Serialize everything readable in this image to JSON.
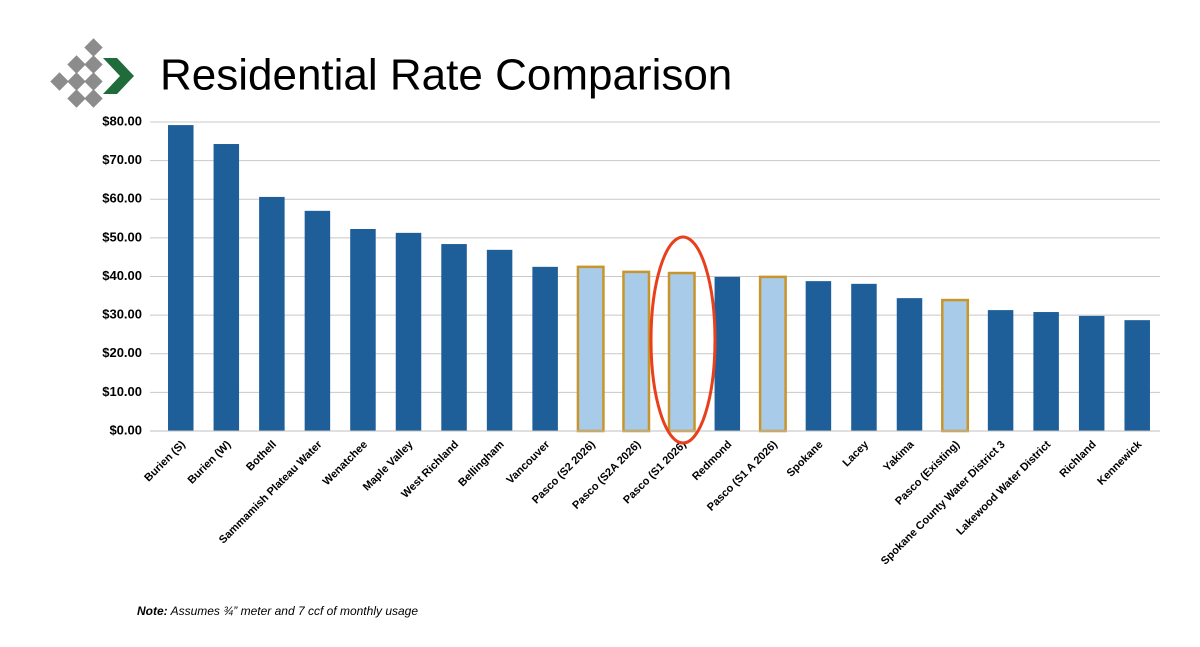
{
  "chart_data": {
    "type": "bar",
    "title": "Residential Rate Comparison",
    "note_label": "Note:",
    "note_text": "Assumes ¾” meter and 7 ccf of monthly usage",
    "categories": [
      "Burien (S)",
      "Burien (W)",
      "Bothell",
      "Sammamish Plateau Water",
      "Wenatchee",
      "Maple Valley",
      "West Richland",
      "Bellingham",
      "Vancouver",
      "Pasco (S2 2026)",
      "Pasco (S2A 2026)",
      "Pasco (S1 2026)",
      "Redmond",
      "Pasco (S1 A 2026)",
      "Spokane",
      "Lacey",
      "Yakima",
      "Pasco (Existing)",
      "Spokane County Water District 3",
      "Lakewood Water District",
      "Richland",
      "Kennewick"
    ],
    "values": [
      79.2,
      74.3,
      60.6,
      57.0,
      52.3,
      51.3,
      48.4,
      46.9,
      42.5,
      42.5,
      41.2,
      40.9,
      39.9,
      39.9,
      38.8,
      38.1,
      34.4,
      33.9,
      31.3,
      30.8,
      29.8,
      28.7
    ],
    "colors": [
      "#1f5f99",
      "#1f5f99",
      "#1f5f99",
      "#1f5f99",
      "#1f5f99",
      "#1f5f99",
      "#1f5f99",
      "#1f5f99",
      "#1f5f99",
      "#a9cbea",
      "#a9cbea",
      "#a9cbea",
      "#1f5f99",
      "#a9cbea",
      "#1f5f99",
      "#1f5f99",
      "#1f5f99",
      "#a9cbea",
      "#1f5f99",
      "#1f5f99",
      "#1f5f99",
      "#1f5f99"
    ],
    "edgecolors": [
      null,
      null,
      null,
      null,
      null,
      null,
      null,
      null,
      null,
      "#c8952b",
      "#c8952b",
      "#c8952b",
      null,
      "#c8952b",
      null,
      null,
      null,
      "#c8952b",
      null,
      null,
      null,
      null
    ],
    "ylim": [
      0,
      80
    ],
    "yticks": [
      {
        "value": 0,
        "label": "$0.00"
      },
      {
        "value": 10,
        "label": "$10.00"
      },
      {
        "value": 20,
        "label": "$20.00"
      },
      {
        "value": 30,
        "label": "$30.00"
      },
      {
        "value": 40,
        "label": "$40.00"
      },
      {
        "value": 50,
        "label": "$50.00"
      },
      {
        "value": 60,
        "label": "$60.00"
      },
      {
        "value": 70,
        "label": "$70.00"
      },
      {
        "value": 80,
        "label": "$80.00"
      }
    ],
    "grid": true
  }
}
